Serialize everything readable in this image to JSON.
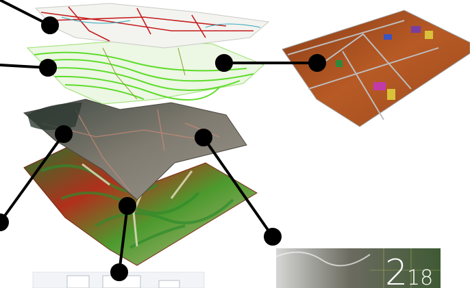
{
  "diagram": {
    "layers": [
      {
        "id": "vector-roads",
        "color": "#c41b1b"
      },
      {
        "id": "contour-lines",
        "color": "#5edc2a"
      },
      {
        "id": "satellite-imagery",
        "color": "#6f6c63"
      },
      {
        "id": "elevation-dem",
        "color": "#b0301c"
      },
      {
        "id": "3d-buildings",
        "color": "#b75a25"
      }
    ],
    "connector_color": "#000000",
    "splash": {
      "version_major": "2",
      "version_minor": "18"
    }
  }
}
